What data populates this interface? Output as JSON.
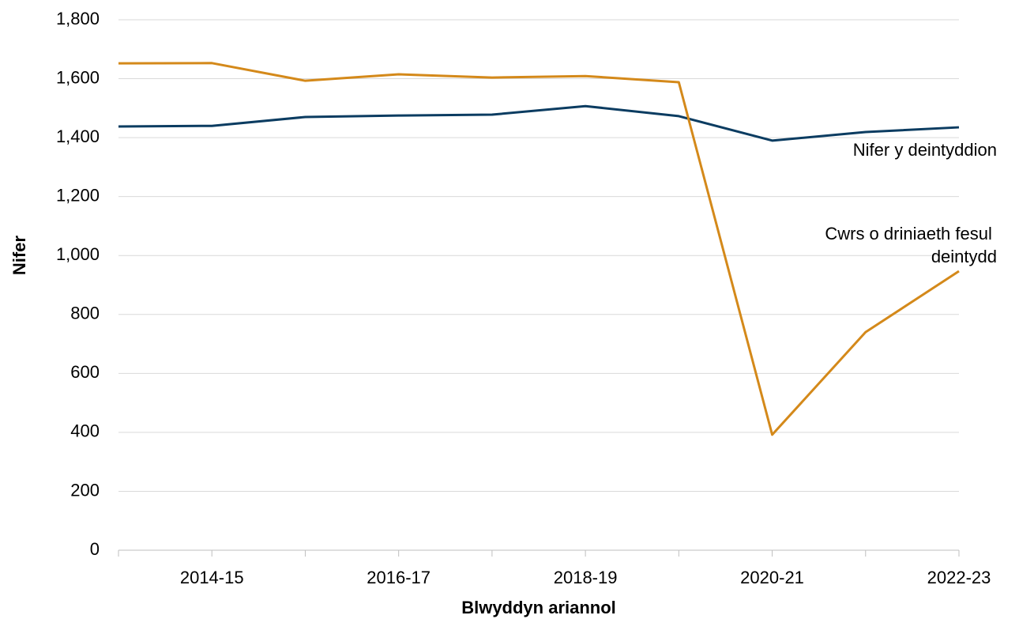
{
  "chart_data": {
    "type": "line",
    "x_label": "Blwyddyn ariannol",
    "y_label": "Nifer",
    "categories": [
      null,
      "2014-15",
      null,
      "2016-17",
      null,
      "2018-19",
      null,
      "2020-21",
      null,
      "2022-23"
    ],
    "series": [
      {
        "name": "Nifer y deintyddion",
        "color": "#0b3c61",
        "values": [
          1438,
          1440,
          1470,
          1475,
          1478,
          1507,
          1473,
          1390,
          1419,
          1435
        ]
      },
      {
        "name": "Cwrs o driniaeth fesul deintydd",
        "color": "#d4891a",
        "values": [
          1652,
          1653,
          1593,
          1615,
          1604,
          1609,
          1588,
          392,
          740,
          947
        ]
      }
    ],
    "ylim": [
      0,
      1800
    ],
    "yticks": [
      0,
      200,
      400,
      600,
      800,
      {
        "value": 1000,
        "label": "1,000"
      },
      {
        "value": 1200,
        "label": "1,200"
      },
      {
        "value": 1400,
        "label": "1,400"
      },
      {
        "value": 1600,
        "label": "1,600"
      },
      {
        "value": 1800,
        "label": "1,800"
      }
    ],
    "grid": true
  }
}
